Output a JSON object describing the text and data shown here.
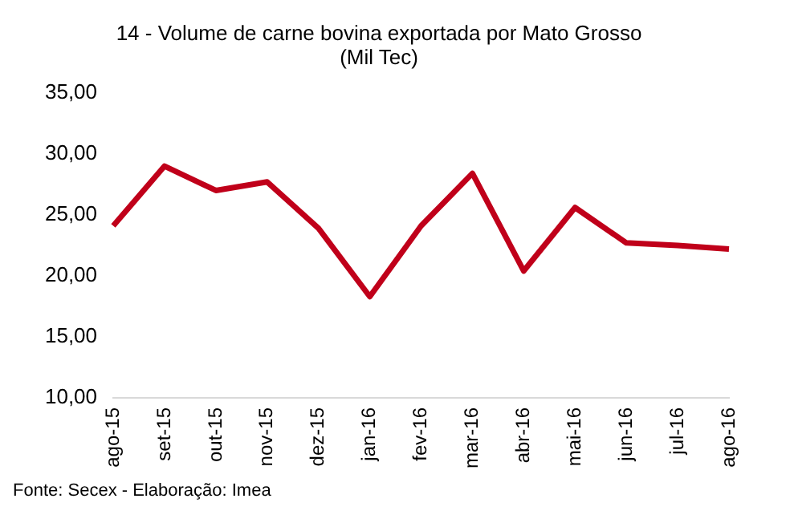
{
  "chart_data": {
    "type": "line",
    "title": [
      "14 - Volume de carne bovina exportada por Mato Grosso",
      "(Mil Tec)"
    ],
    "categories": [
      "ago-15",
      "set-15",
      "out-15",
      "nov-15",
      "dez-15",
      "jan-16",
      "fev-16",
      "mar-16",
      "abr-16",
      "mai-16",
      "jun-16",
      "jul-16",
      "ago-16"
    ],
    "series": [
      {
        "color": "#c0001a",
        "values": [
          24.1,
          29.0,
          27.0,
          27.7,
          23.9,
          18.3,
          24.1,
          28.4,
          20.4,
          25.6,
          22.7,
          22.5,
          22.2
        ]
      }
    ],
    "ylim": [
      10,
      35
    ],
    "yticks": [
      {
        "value": 10,
        "label": "10,00"
      },
      {
        "value": 15,
        "label": "15,00"
      },
      {
        "value": 20,
        "label": "20,00"
      },
      {
        "value": 25,
        "label": "25,00"
      },
      {
        "value": 30,
        "label": "30,00"
      },
      {
        "value": 35,
        "label": "35,00"
      }
    ],
    "grid": false,
    "legend": false,
    "marker": "none",
    "line_style": "solid",
    "annotations": [
      "Fonte: Secex - Elaboração: Imea"
    ]
  }
}
